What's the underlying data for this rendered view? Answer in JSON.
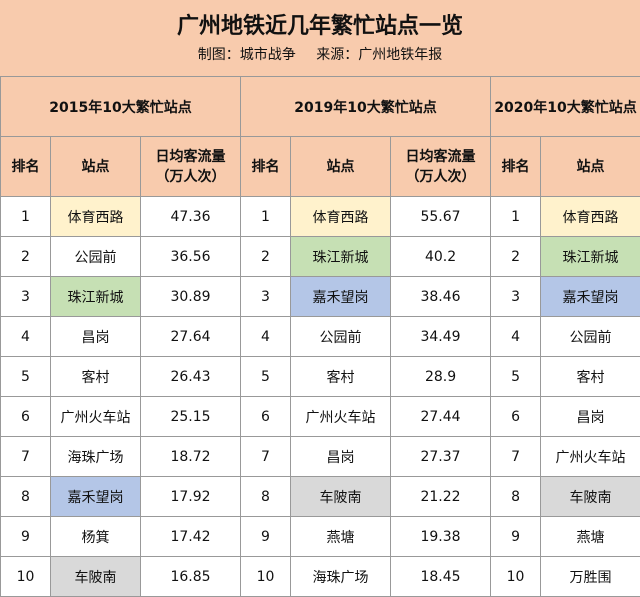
{
  "title": "广州地铁近几年繁忙站点一览",
  "credit": {
    "made_by": "制图：城市战争",
    "source": "来源：广州地铁年报"
  },
  "groups": [
    "2015年10大繁忙站点",
    "2019年10大繁忙站点",
    "2020年10大繁忙站点"
  ],
  "headers": {
    "rank": "排名",
    "station": "站点",
    "flow_line1": "日均客流量",
    "flow_line2": "（万人次）"
  },
  "rows": [
    {
      "r15": "1",
      "s15": "体育西路",
      "f15": "47.36",
      "r19": "1",
      "s19": "体育西路",
      "f19": "55.67",
      "r20": "1",
      "s20": "体育西路"
    },
    {
      "r15": "2",
      "s15": "公园前",
      "f15": "36.56",
      "r19": "2",
      "s19": "珠江新城",
      "f19": "40.2",
      "r20": "2",
      "s20": "珠江新城"
    },
    {
      "r15": "3",
      "s15": "珠江新城",
      "f15": "30.89",
      "r19": "3",
      "s19": "嘉禾望岗",
      "f19": "38.46",
      "r20": "3",
      "s20": "嘉禾望岗"
    },
    {
      "r15": "4",
      "s15": "昌岗",
      "f15": "27.64",
      "r19": "4",
      "s19": "公园前",
      "f19": "34.49",
      "r20": "4",
      "s20": "公园前"
    },
    {
      "r15": "5",
      "s15": "客村",
      "f15": "26.43",
      "r19": "5",
      "s19": "客村",
      "f19": "28.9",
      "r20": "5",
      "s20": "客村"
    },
    {
      "r15": "6",
      "s15": "广州火车站",
      "f15": "25.15",
      "r19": "6",
      "s19": "广州火车站",
      "f19": "27.44",
      "r20": "6",
      "s20": "昌岗"
    },
    {
      "r15": "7",
      "s15": "海珠广场",
      "f15": "18.72",
      "r19": "7",
      "s19": "昌岗",
      "f19": "27.37",
      "r20": "7",
      "s20": "广州火车站"
    },
    {
      "r15": "8",
      "s15": "嘉禾望岗",
      "f15": "17.92",
      "r19": "8",
      "s19": "车陂南",
      "f19": "21.22",
      "r20": "8",
      "s20": "车陂南"
    },
    {
      "r15": "9",
      "s15": "杨箕",
      "f15": "17.42",
      "r19": "9",
      "s19": "燕塘",
      "f19": "19.38",
      "r20": "9",
      "s20": "燕塘"
    },
    {
      "r15": "10",
      "s15": "车陂南",
      "f15": "16.85",
      "r19": "10",
      "s19": "海珠广场",
      "f19": "18.45",
      "r20": "10",
      "s20": "万胜围"
    }
  ],
  "highlight_colors": {
    "体育西路": "#fff2cc",
    "珠江新城": "#c6e0b4",
    "嘉禾望岗": "#b4c6e7",
    "车陂南": "#d9d9d9"
  }
}
